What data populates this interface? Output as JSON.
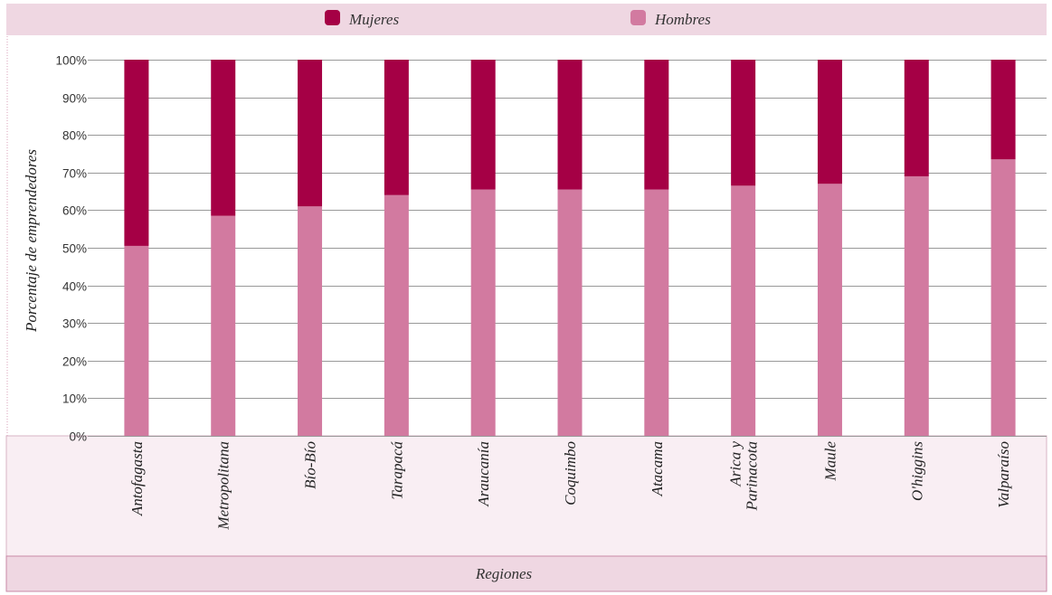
{
  "chart_data": {
    "type": "bar",
    "stacked": true,
    "percent": true,
    "categories": [
      "Antofagasta",
      "Metropolitana",
      "Bío-Bío",
      "Tarapacá",
      "Araucanía",
      "Coquimbo",
      "Atacama",
      "Arica y Parinacota",
      "Maule",
      "O'higgins",
      "Valparaíso"
    ],
    "category_label_lines": [
      [
        "Antofagasta"
      ],
      [
        "Metropolitana"
      ],
      [
        "Bío-Bío"
      ],
      [
        "Tarapacá"
      ],
      [
        "Araucanía"
      ],
      [
        "Coquimbo"
      ],
      [
        "Atacama"
      ],
      [
        "Arica y",
        "Parinacota"
      ],
      [
        "Maule"
      ],
      [
        "O'higgins"
      ],
      [
        "Valparaíso"
      ]
    ],
    "series": [
      {
        "name": "Hombres",
        "values": [
          50.5,
          58.5,
          61,
          64,
          65.5,
          65.5,
          65.5,
          66.5,
          67,
          69,
          73.5
        ]
      },
      {
        "name": "Mujeres",
        "values": [
          49.5,
          41.5,
          39,
          36,
          34.5,
          34.5,
          34.5,
          33.5,
          33,
          31,
          26.5
        ]
      }
    ],
    "ylim": [
      0,
      100
    ],
    "ytick_values": [
      0,
      10,
      20,
      30,
      40,
      50,
      60,
      70,
      80,
      90,
      100
    ],
    "ytick_labels": [
      "0%",
      "10%",
      "20%",
      "30%",
      "40%",
      "50%",
      "60%",
      "70%",
      "80%",
      "90%",
      "100%"
    ],
    "ylabel": "Porcentaje de emprendedores",
    "xlabel": "Regiones",
    "legend": {
      "position": "top",
      "items": [
        "Mujeres",
        "Hombres"
      ]
    },
    "grid": true
  },
  "colors": {
    "Mujeres": "#a50045",
    "Hombres": "#d27aa0",
    "gridline": "#999999",
    "band_light": "#f9eef3",
    "band_mid": "#efd7e2",
    "band_border": "#c98aa7"
  }
}
